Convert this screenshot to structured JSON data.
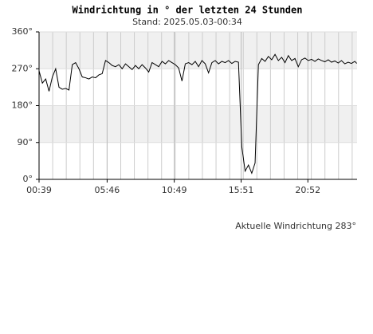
{
  "chart_data": {
    "type": "line",
    "title": "Windrichtung in ° der letzten 24 Stunden",
    "subtitle": "Stand: 2025.05.03-00:34",
    "annotation": "Aktuelle Windrichtung 283°",
    "x": [
      0,
      0.25,
      0.5,
      0.75,
      1,
      1.25,
      1.5,
      1.75,
      2,
      2.25,
      2.5,
      2.75,
      3,
      3.25,
      3.5,
      3.75,
      4,
      4.25,
      4.5,
      4.75,
      5,
      5.25,
      5.5,
      5.75,
      6,
      6.25,
      6.5,
      6.75,
      7,
      7.25,
      7.5,
      7.75,
      8,
      8.25,
      8.5,
      8.75,
      9,
      9.25,
      9.5,
      9.75,
      10,
      10.25,
      10.5,
      10.75,
      11,
      11.25,
      11.5,
      11.75,
      12,
      12.25,
      12.5,
      12.75,
      13,
      13.25,
      13.5,
      13.75,
      14,
      14.25,
      14.5,
      14.75,
      15,
      15.25,
      15.5,
      15.75,
      16,
      16.25,
      16.5,
      16.75,
      17,
      17.25,
      17.5,
      17.75,
      18,
      18.25,
      18.5,
      18.75,
      19,
      19.25,
      19.5,
      19.75,
      20,
      20.25,
      20.5,
      20.75,
      21,
      21.25,
      21.5,
      21.75,
      22,
      22.25,
      22.5,
      22.75,
      23,
      23.25,
      23.5,
      23.75,
      23.9
    ],
    "series": [
      {
        "name": "Windrichtung",
        "color": "#000000",
        "values": [
          265,
          235,
          245,
          215,
          250,
          270,
          225,
          220,
          222,
          218,
          280,
          285,
          270,
          250,
          248,
          245,
          250,
          248,
          255,
          258,
          290,
          285,
          278,
          275,
          280,
          270,
          282,
          275,
          268,
          278,
          270,
          280,
          272,
          262,
          285,
          280,
          275,
          288,
          282,
          290,
          285,
          280,
          272,
          240,
          282,
          285,
          280,
          288,
          275,
          290,
          282,
          260,
          285,
          290,
          282,
          288,
          285,
          290,
          283,
          288,
          286,
          80,
          20,
          35,
          15,
          40,
          280,
          295,
          288,
          300,
          292,
          305,
          290,
          298,
          285,
          302,
          290,
          295,
          275,
          292,
          296,
          290,
          293,
          288,
          294,
          290,
          287,
          292,
          286,
          289,
          284,
          290,
          282,
          286,
          283,
          288,
          283
        ]
      }
    ],
    "xlim": [
      0,
      23.92
    ],
    "xticks": [
      {
        "value": 0,
        "label": "00:39"
      },
      {
        "value": 5.12,
        "label": "05:46"
      },
      {
        "value": 10.17,
        "label": "10:49"
      },
      {
        "value": 15.2,
        "label": "15:51"
      },
      {
        "value": 20.22,
        "label": "20:52"
      }
    ],
    "ylim": [
      0,
      360
    ],
    "yticks": [
      {
        "value": 0,
        "label": "0°"
      },
      {
        "value": 90,
        "label": "90°"
      },
      {
        "value": 180,
        "label": "180°"
      },
      {
        "value": 270,
        "label": "270°"
      },
      {
        "value": 360,
        "label": "360°"
      }
    ],
    "grid": true
  }
}
